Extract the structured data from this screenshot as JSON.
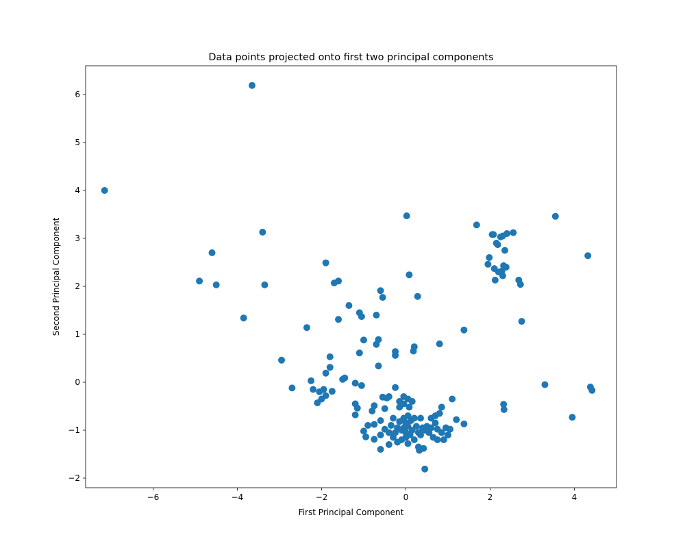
{
  "chart_data": {
    "type": "scatter",
    "title": "Data points projected onto first two principal components",
    "xlabel": "First Principal Component",
    "ylabel": "Second Principal Component",
    "xlim": [
      -7.6,
      5.0
    ],
    "ylim": [
      -2.2,
      6.6
    ],
    "xticks": [
      -6,
      -4,
      -2,
      0,
      2,
      4
    ],
    "yticks": [
      -2,
      -1,
      0,
      1,
      2,
      3,
      4,
      5,
      6
    ],
    "grid": false,
    "marker_color": "#1f77b4",
    "points": [
      [
        -7.15,
        4.0
      ],
      [
        -3.65,
        6.19
      ],
      [
        -4.9,
        2.11
      ],
      [
        -4.6,
        2.7
      ],
      [
        -4.5,
        2.03
      ],
      [
        -3.4,
        3.13
      ],
      [
        -3.35,
        2.03
      ],
      [
        -3.85,
        1.34
      ],
      [
        -2.95,
        0.46
      ],
      [
        -2.7,
        -0.12
      ],
      [
        -2.35,
        1.14
      ],
      [
        -2.25,
        0.03
      ],
      [
        -2.2,
        -0.15
      ],
      [
        -2.1,
        -0.43
      ],
      [
        -2.05,
        -0.2
      ],
      [
        -2.0,
        -0.35
      ],
      [
        -1.95,
        -0.15
      ],
      [
        -1.9,
        0.19
      ],
      [
        -1.9,
        -0.28
      ],
      [
        -1.8,
        0.53
      ],
      [
        -1.8,
        0.31
      ],
      [
        -1.75,
        -0.19
      ],
      [
        -1.9,
        2.49
      ],
      [
        -1.7,
        2.07
      ],
      [
        -1.6,
        2.11
      ],
      [
        -1.6,
        1.31
      ],
      [
        -1.5,
        0.06
      ],
      [
        -1.45,
        0.09
      ],
      [
        -1.35,
        1.6
      ],
      [
        -1.2,
        -0.02
      ],
      [
        -1.2,
        -0.45
      ],
      [
        -1.15,
        -0.54
      ],
      [
        -1.2,
        -0.68
      ],
      [
        -1.1,
        1.45
      ],
      [
        -1.05,
        1.37
      ],
      [
        -1.1,
        0.61
      ],
      [
        -1.0,
        0.88
      ],
      [
        -1.05,
        -0.07
      ],
      [
        -1.0,
        -1.02
      ],
      [
        -0.95,
        -1.14
      ],
      [
        -0.9,
        -0.9
      ],
      [
        -0.8,
        -0.6
      ],
      [
        -0.75,
        -0.49
      ],
      [
        -0.75,
        -0.88
      ],
      [
        -0.75,
        -1.19
      ],
      [
        -0.7,
        0.79
      ],
      [
        -0.65,
        0.89
      ],
      [
        -0.7,
        1.4
      ],
      [
        -0.65,
        0.34
      ],
      [
        -0.6,
        -0.8
      ],
      [
        -0.6,
        -1.1
      ],
      [
        -0.6,
        -1.4
      ],
      [
        -0.55,
        -0.31
      ],
      [
        -0.6,
        1.91
      ],
      [
        -0.55,
        1.77
      ],
      [
        -0.5,
        -0.55
      ],
      [
        -0.5,
        -0.98
      ],
      [
        -0.45,
        -0.33
      ],
      [
        -0.4,
        -0.3
      ],
      [
        -0.4,
        -1.05
      ],
      [
        -0.4,
        -1.3
      ],
      [
        -0.35,
        -0.9
      ],
      [
        -0.3,
        -0.75
      ],
      [
        -0.3,
        -1.15
      ],
      [
        -0.25,
        0.64
      ],
      [
        -0.25,
        0.56
      ],
      [
        -0.25,
        -0.11
      ],
      [
        -0.25,
        -1.05
      ],
      [
        -0.2,
        -0.95
      ],
      [
        -0.2,
        -1.25
      ],
      [
        -0.15,
        -0.4
      ],
      [
        -0.15,
        -0.52
      ],
      [
        -0.15,
        -0.82
      ],
      [
        -0.1,
        -1.0
      ],
      [
        -0.1,
        -1.2
      ],
      [
        -0.05,
        -0.3
      ],
      [
        -0.05,
        -0.45
      ],
      [
        -0.05,
        -0.75
      ],
      [
        -0.05,
        -0.95
      ],
      [
        0.0,
        -0.85
      ],
      [
        0.0,
        -1.05
      ],
      [
        0.0,
        -1.15
      ],
      [
        0.02,
        3.47
      ],
      [
        0.05,
        -0.35
      ],
      [
        0.05,
        -0.7
      ],
      [
        0.05,
        -0.92
      ],
      [
        0.05,
        -1.28
      ],
      [
        0.08,
        2.24
      ],
      [
        0.08,
        -0.52
      ],
      [
        0.1,
        -1.1
      ],
      [
        0.12,
        -0.8
      ],
      [
        0.15,
        -0.4
      ],
      [
        0.15,
        -1.0
      ],
      [
        0.18,
        0.65
      ],
      [
        0.2,
        0.74
      ],
      [
        0.2,
        -0.75
      ],
      [
        0.2,
        -1.2
      ],
      [
        0.25,
        -0.92
      ],
      [
        0.28,
        1.79
      ],
      [
        0.3,
        -1.05
      ],
      [
        0.3,
        -1.35
      ],
      [
        0.32,
        -1.42
      ],
      [
        0.35,
        -0.75
      ],
      [
        0.35,
        -1.1
      ],
      [
        0.4,
        -0.95
      ],
      [
        0.42,
        -1.38
      ],
      [
        0.45,
        -1.81
      ],
      [
        0.45,
        -1.0
      ],
      [
        0.5,
        -0.92
      ],
      [
        0.55,
        -1.05
      ],
      [
        0.6,
        -0.75
      ],
      [
        0.6,
        -0.95
      ],
      [
        0.65,
        -1.15
      ],
      [
        0.7,
        -0.7
      ],
      [
        0.7,
        -0.85
      ],
      [
        0.75,
        -1.2
      ],
      [
        0.75,
        -0.98
      ],
      [
        0.8,
        -0.65
      ],
      [
        0.8,
        0.8
      ],
      [
        0.85,
        -0.52
      ],
      [
        0.85,
        -1.05
      ],
      [
        0.9,
        -1.2
      ],
      [
        0.95,
        -0.95
      ],
      [
        1.0,
        -1.1
      ],
      [
        1.05,
        -0.98
      ],
      [
        1.1,
        -0.35
      ],
      [
        1.2,
        -0.78
      ],
      [
        1.38,
        1.09
      ],
      [
        1.38,
        -0.87
      ],
      [
        1.68,
        3.28
      ],
      [
        1.95,
        2.46
      ],
      [
        1.98,
        2.6
      ],
      [
        2.05,
        3.08
      ],
      [
        2.08,
        3.08
      ],
      [
        2.1,
        2.37
      ],
      [
        2.12,
        2.13
      ],
      [
        2.15,
        2.9
      ],
      [
        2.18,
        2.87
      ],
      [
        2.2,
        2.3
      ],
      [
        2.25,
        3.03
      ],
      [
        2.28,
        2.32
      ],
      [
        2.3,
        2.22
      ],
      [
        2.3,
        3.05
      ],
      [
        2.32,
        2.43
      ],
      [
        2.32,
        -0.46
      ],
      [
        2.33,
        -0.57
      ],
      [
        2.35,
        2.75
      ],
      [
        2.38,
        2.4
      ],
      [
        2.4,
        3.1
      ],
      [
        2.55,
        3.12
      ],
      [
        2.68,
        2.13
      ],
      [
        2.72,
        2.04
      ],
      [
        2.75,
        1.27
      ],
      [
        3.3,
        -0.05
      ],
      [
        3.55,
        3.46
      ],
      [
        3.95,
        -0.73
      ],
      [
        4.32,
        2.64
      ],
      [
        4.38,
        -0.1
      ],
      [
        4.42,
        -0.17
      ]
    ]
  }
}
